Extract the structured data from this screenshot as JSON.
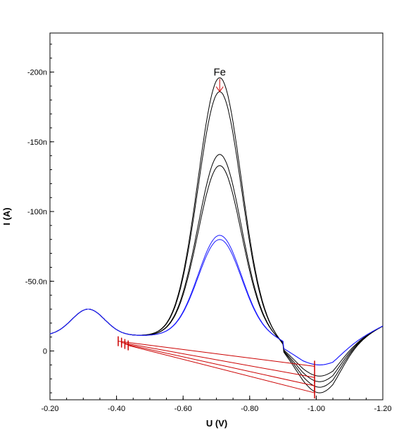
{
  "chart_data": {
    "type": "line",
    "xlabel": "U (V)",
    "ylabel": "I (A)",
    "xlim": [
      -0.2,
      -1.2
    ],
    "ylim": [
      35,
      -228
    ],
    "x_ticks": [
      -0.2,
      -0.4,
      -0.6,
      -0.8,
      -1.0,
      -1.2
    ],
    "x_tick_labels": [
      "-0.20",
      "-0.40",
      "-0.60",
      "-0.80",
      "-1.00",
      "-1.20"
    ],
    "y_ticks": [
      0,
      -50,
      -100,
      -150,
      -200
    ],
    "y_tick_labels": [
      "0",
      "-50.0n",
      "-100n",
      "-150n",
      "-200n"
    ],
    "grid": false,
    "annotation": {
      "label": "Fe",
      "x": -0.71,
      "y": -186,
      "color": "#cc0000"
    },
    "series": [
      {
        "color": "#000000",
        "peak": -185,
        "tail": 30
      },
      {
        "color": "#000000",
        "peak": -175,
        "tail": 26
      },
      {
        "color": "#000000",
        "peak": -130,
        "tail": 22
      },
      {
        "color": "#000000",
        "peak": -122,
        "tail": 18
      },
      {
        "color": "#1a1aff",
        "peak": -72,
        "tail": 10
      },
      {
        "color": "#1a1aff",
        "peak": -69,
        "tail": 10
      }
    ],
    "baselines": [
      {
        "x1": -0.435,
        "y1": -4,
        "x2": -0.995,
        "y2": 30
      },
      {
        "x1": -0.425,
        "y1": -5,
        "x2": -0.995,
        "y2": 25
      },
      {
        "x1": -0.415,
        "y1": -6,
        "x2": -0.995,
        "y2": 19
      },
      {
        "x1": -0.405,
        "y1": -7,
        "x2": -0.995,
        "y2": 11
      }
    ]
  }
}
